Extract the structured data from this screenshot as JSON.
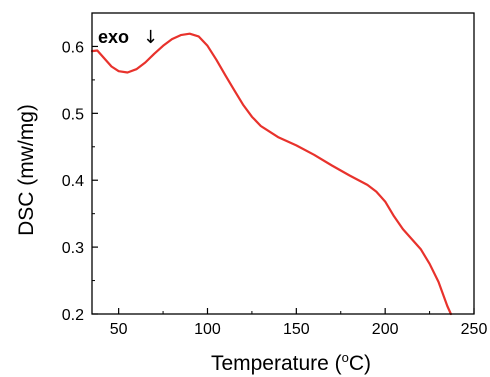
{
  "chart_data": {
    "type": "line",
    "title": "",
    "xlabel": "Temperature (",
    "xlabel_sup": "o",
    "xlabel_unit": "C)",
    "ylabel": "DSC (mw/mg)",
    "xlim": [
      35,
      250
    ],
    "ylim": [
      0.2,
      0.65
    ],
    "x_ticks": [
      50,
      100,
      150,
      200,
      250
    ],
    "x_tick_labels": [
      "50",
      "100",
      "150",
      "200",
      "250"
    ],
    "y_ticks": [
      0.2,
      0.3,
      0.4,
      0.5,
      0.6
    ],
    "y_tick_labels": [
      "0.2",
      "0.3",
      "0.4",
      "0.5",
      "0.6"
    ],
    "grid": false,
    "annotation": {
      "text": "exo",
      "arrow": "↓"
    },
    "series": [
      {
        "color": "#e8322c",
        "x": [
          35,
          38,
          42,
          46,
          50,
          55,
          60,
          65,
          70,
          75,
          80,
          85,
          90,
          95,
          100,
          105,
          110,
          115,
          120,
          125,
          130,
          140,
          150,
          160,
          170,
          180,
          190,
          195,
          200,
          205,
          210,
          220,
          225,
          230,
          235,
          237
        ],
        "y": [
          0.593,
          0.594,
          0.582,
          0.57,
          0.563,
          0.561,
          0.566,
          0.576,
          0.589,
          0.601,
          0.611,
          0.617,
          0.619,
          0.615,
          0.601,
          0.58,
          0.557,
          0.535,
          0.513,
          0.495,
          0.481,
          0.464,
          0.452,
          0.438,
          0.422,
          0.407,
          0.393,
          0.383,
          0.368,
          0.346,
          0.327,
          0.297,
          0.275,
          0.248,
          0.212,
          0.2
        ]
      }
    ]
  }
}
